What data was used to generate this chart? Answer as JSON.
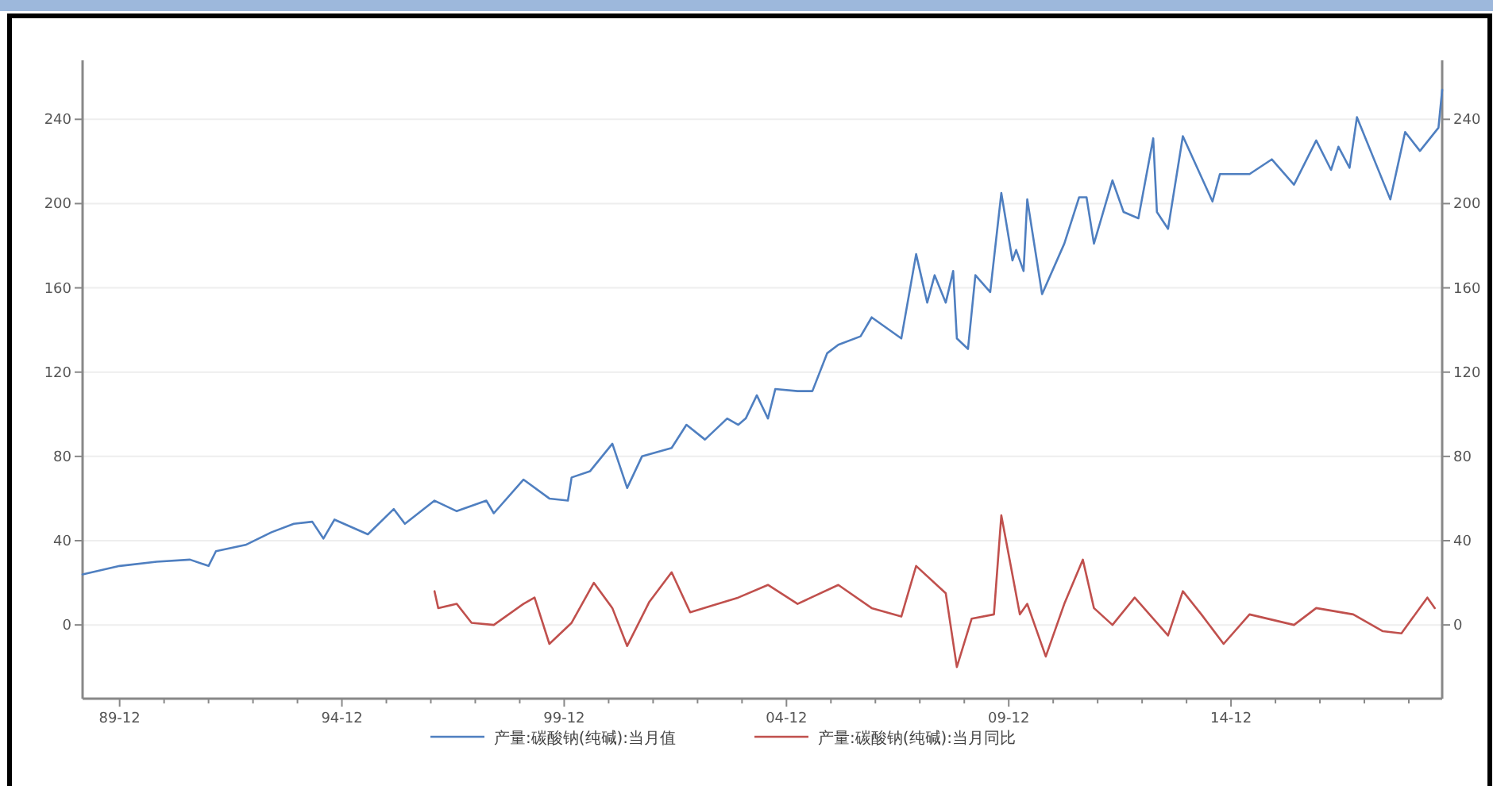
{
  "chart_data": {
    "type": "line",
    "xlim": [
      "1989-02",
      "2019-09"
    ],
    "xticks": [
      {
        "value": "1989-12",
        "label": "89-12"
      },
      {
        "value": "1990-12",
        "label": null
      },
      {
        "value": "1991-12",
        "label": null
      },
      {
        "value": "1992-12",
        "label": null
      },
      {
        "value": "1993-12",
        "label": null
      },
      {
        "value": "1994-12",
        "label": "94-12"
      },
      {
        "value": "1995-12",
        "label": null
      },
      {
        "value": "1996-12",
        "label": null
      },
      {
        "value": "1997-12",
        "label": null
      },
      {
        "value": "1998-12",
        "label": null
      },
      {
        "value": "1999-12",
        "label": "99-12"
      },
      {
        "value": "2000-12",
        "label": null
      },
      {
        "value": "2001-12",
        "label": null
      },
      {
        "value": "2002-12",
        "label": null
      },
      {
        "value": "2003-12",
        "label": null
      },
      {
        "value": "2004-12",
        "label": "04-12"
      },
      {
        "value": "2005-12",
        "label": null
      },
      {
        "value": "2006-12",
        "label": null
      },
      {
        "value": "2007-12",
        "label": null
      },
      {
        "value": "2008-12",
        "label": null
      },
      {
        "value": "2009-12",
        "label": "09-12"
      },
      {
        "value": "2010-12",
        "label": null
      },
      {
        "value": "2011-12",
        "label": null
      },
      {
        "value": "2012-12",
        "label": null
      },
      {
        "value": "2013-12",
        "label": null
      },
      {
        "value": "2014-12",
        "label": "14-12"
      },
      {
        "value": "2015-12",
        "label": null
      },
      {
        "value": "2016-12",
        "label": null
      },
      {
        "value": "2017-12",
        "label": null
      },
      {
        "value": "2018-12",
        "label": null
      }
    ],
    "ylim": [
      -35,
      268
    ],
    "yticks": [
      0,
      40,
      80,
      120,
      160,
      200,
      240
    ],
    "y2lim": [
      -35,
      268
    ],
    "y2ticks": [
      0,
      40,
      80,
      120,
      160,
      200,
      240
    ],
    "grid": "y",
    "legend": "bottom",
    "series": [
      {
        "name": "产量:碳酸钠(纯碱):当月值",
        "color": "#4f7fc0",
        "x": [
          "1989-02",
          "1989-12",
          "1990-10",
          "1991-07",
          "1991-12",
          "1992-02",
          "1992-10",
          "1993-05",
          "1993-11",
          "1994-04",
          "1994-07",
          "1994-10",
          "1995-07",
          "1996-02",
          "1996-05",
          "1997-01",
          "1997-07",
          "1998-03",
          "1998-05",
          "1999-01",
          "1999-08",
          "2000-01",
          "2000-02",
          "2000-07",
          "2001-01",
          "2001-05",
          "2001-09",
          "2002-05",
          "2002-09",
          "2003-02",
          "2003-08",
          "2003-11",
          "2004-01",
          "2004-04",
          "2004-07",
          "2004-09",
          "2005-03",
          "2005-07",
          "2005-11",
          "2006-02",
          "2006-08",
          "2006-11",
          "2007-07",
          "2007-11",
          "2008-02",
          "2008-04",
          "2008-07",
          "2008-09",
          "2008-10",
          "2009-01",
          "2009-03",
          "2009-07",
          "2009-10",
          "2010-01",
          "2010-02",
          "2010-04",
          "2010-05",
          "2010-09",
          "2011-03",
          "2011-07",
          "2011-09",
          "2011-11",
          "2012-04",
          "2012-07",
          "2012-11",
          "2013-03",
          "2013-04",
          "2013-07",
          "2013-11",
          "2014-07",
          "2014-09",
          "2015-05",
          "2015-11",
          "2016-05",
          "2016-11",
          "2017-03",
          "2017-05",
          "2017-08",
          "2017-10",
          "2018-07",
          "2018-11",
          "2019-03",
          "2019-08",
          "2019-09"
        ],
        "values": [
          24,
          28,
          30,
          31,
          28,
          35,
          38,
          44,
          48,
          49,
          41,
          50,
          43,
          55,
          48,
          59,
          54,
          59,
          53,
          69,
          60,
          59,
          70,
          73,
          86,
          65,
          80,
          84,
          95,
          88,
          98,
          95,
          98,
          109,
          98,
          112,
          111,
          111,
          129,
          133,
          137,
          146,
          136,
          176,
          153,
          166,
          153,
          168,
          136,
          131,
          166,
          158,
          205,
          173,
          178,
          168,
          202,
          157,
          181,
          203,
          203,
          181,
          211,
          196,
          193,
          231,
          196,
          188,
          232,
          201,
          214,
          214,
          221,
          209,
          230,
          216,
          227,
          217,
          241,
          202,
          234,
          225,
          236,
          254
        ]
      },
      {
        "name": "产量:碳酸钠(纯碱):当月同比",
        "color": "#c0504d",
        "x": [
          "1997-01",
          "1997-02",
          "1997-07",
          "1997-11",
          "1998-05",
          "1999-01",
          "1999-04",
          "1999-08",
          "2000-02",
          "2000-08",
          "2001-01",
          "2001-05",
          "2001-11",
          "2002-05",
          "2002-10",
          "2003-11",
          "2004-07",
          "2005-03",
          "2006-02",
          "2006-11",
          "2007-07",
          "2007-11",
          "2008-07",
          "2008-10",
          "2009-02",
          "2009-08",
          "2009-10",
          "2010-03",
          "2010-05",
          "2010-10",
          "2011-03",
          "2011-08",
          "2011-11",
          "2012-04",
          "2012-10",
          "2013-07",
          "2013-11",
          "2014-04",
          "2014-10",
          "2015-05",
          "2016-05",
          "2016-11",
          "2017-09",
          "2018-05",
          "2018-10",
          "2019-05",
          "2019-07"
        ],
        "values": [
          16,
          8,
          10,
          1,
          0,
          10,
          13,
          -9,
          1,
          20,
          8,
          -10,
          11,
          25,
          6,
          13,
          19,
          10,
          19,
          8,
          4,
          28,
          15,
          -20,
          3,
          5,
          52,
          5,
          10,
          -15,
          10,
          31,
          8,
          0,
          13,
          -5,
          16,
          5,
          -9,
          5,
          0,
          8,
          5,
          -3,
          -4,
          13,
          8
        ]
      }
    ]
  }
}
